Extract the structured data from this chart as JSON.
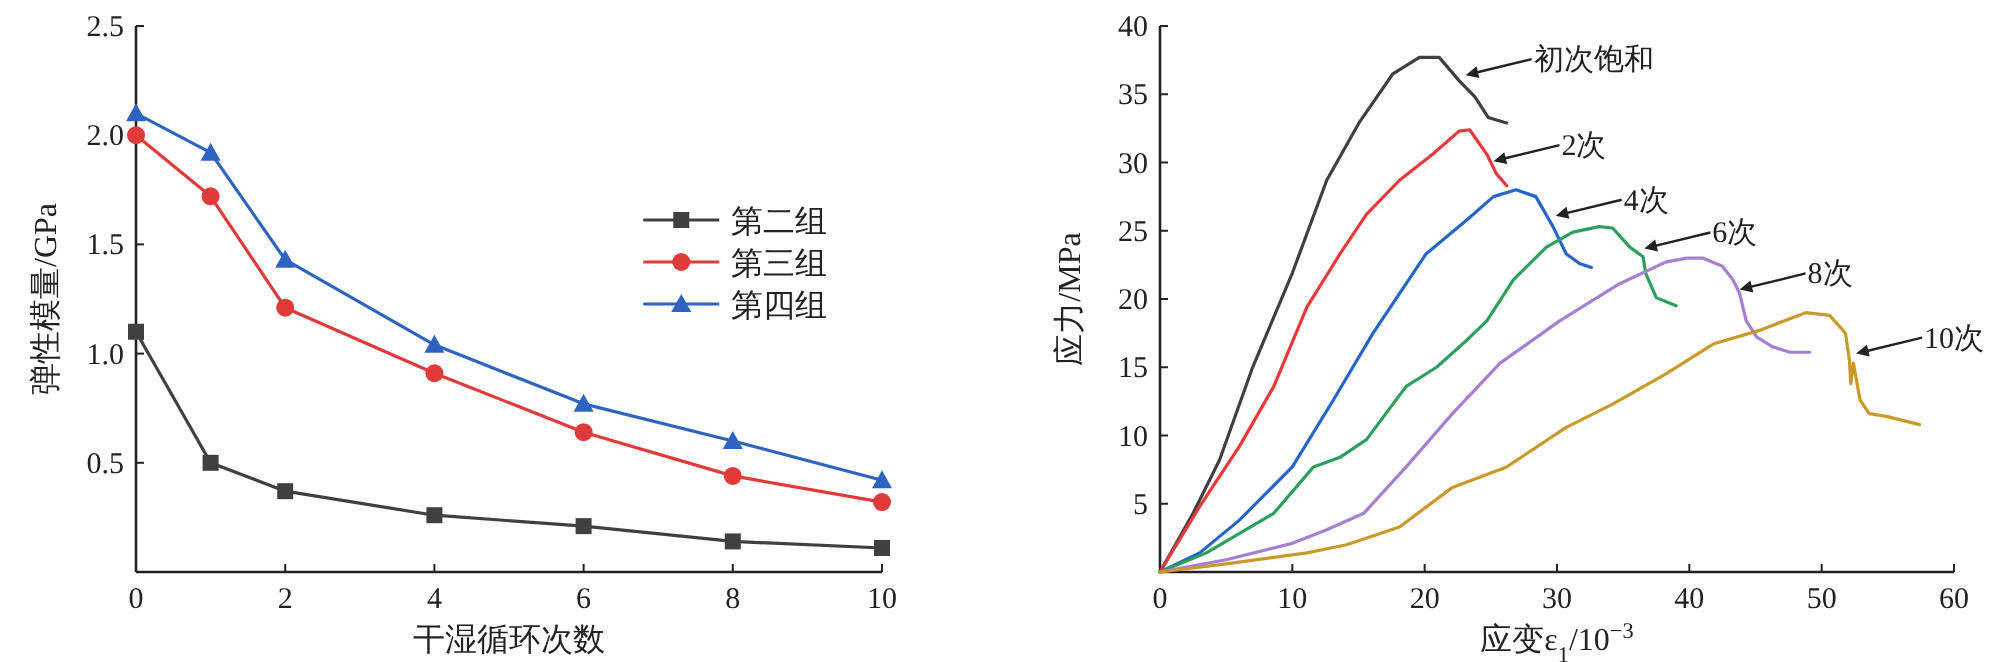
{
  "chart_data": [
    {
      "type": "line",
      "xlabel": "干湿循环次数",
      "ylabel": "弹性模量/GPa",
      "x": [
        0,
        1,
        2,
        4,
        6,
        8,
        10
      ],
      "xlim": [
        0,
        10
      ],
      "xticks": [
        0,
        2,
        4,
        6,
        8,
        10
      ],
      "ylim": [
        0,
        2.5
      ],
      "yticks": [
        0.5,
        {
          "value": 1,
          "label": "1.0"
        },
        1.5,
        {
          "value": 2,
          "label": "2.0"
        },
        2.5
      ],
      "legend": "right",
      "series": [
        {
          "name": "第二组",
          "color": "#404040",
          "marker": "square",
          "values": [
            1.1,
            0.5,
            0.37,
            0.26,
            0.21,
            0.14,
            0.11
          ]
        },
        {
          "name": "第三组",
          "color": "#e03a3a",
          "marker": "circle",
          "values": [
            2.0,
            1.72,
            1.21,
            0.91,
            0.64,
            0.44,
            0.32
          ]
        },
        {
          "name": "第四组",
          "color": "#2e64c0",
          "marker": "triangle",
          "values": [
            2.1,
            1.92,
            1.43,
            1.04,
            0.77,
            0.6,
            0.42
          ]
        }
      ]
    },
    {
      "type": "line",
      "xlabel": "应变ε$_{1}$/10$^{−3}$",
      "ylabel": "应力/MPa",
      "xlim": [
        0,
        60
      ],
      "xticks": [
        0,
        10,
        20,
        30,
        40,
        50,
        60
      ],
      "ylim": [
        0,
        40
      ],
      "yticks": [
        5,
        10,
        15,
        20,
        25,
        30,
        35,
        40
      ],
      "marker": "none",
      "series": [
        {
          "color": "#404040",
          "x": [
            0,
            2.5,
            4.5,
            7,
            10,
            12.6,
            15.1,
            17.6,
            19.6,
            21.1,
            22.6,
            23.8,
            24.8,
            26.2
          ],
          "values": [
            0,
            4.3,
            8.2,
            15,
            21.9,
            28.7,
            33,
            36.5,
            37.7,
            37.7,
            36,
            34.8,
            33.3,
            32.9
          ]
        },
        {
          "color": "#e8383a",
          "x": [
            0,
            3,
            6,
            8.6,
            11.1,
            13.6,
            15.6,
            18.1,
            20.6,
            22.6,
            23.4,
            24.7,
            25.4,
            26.2
          ],
          "values": [
            0,
            4.8,
            9.2,
            13.6,
            19.4,
            23.3,
            26.2,
            28.7,
            30.6,
            32.3,
            32.4,
            30.6,
            29.2,
            28.3
          ]
        },
        {
          "color": "#2565c8",
          "x": [
            0,
            3,
            6,
            10,
            13.1,
            16.1,
            20.1,
            23.2,
            25.2,
            26.9,
            28.4,
            29.7,
            30.7,
            31.7,
            32.6
          ],
          "values": [
            0,
            1.4,
            3.8,
            7.7,
            12.6,
            17.5,
            23.3,
            25.8,
            27.5,
            28,
            27.5,
            25.3,
            23.3,
            22.6,
            22.3
          ]
        },
        {
          "color": "#2e9e5e",
          "x": [
            0,
            3.5,
            8.6,
            11.6,
            13.6,
            15.6,
            18.6,
            20.9,
            23.2,
            24.7,
            26.7,
            29.2,
            31.2,
            33.2,
            34.2,
            35.5,
            36.5,
            36.7,
            37.5,
            39
          ],
          "values": [
            0,
            1.4,
            4.3,
            7.7,
            8.4,
            9.7,
            13.6,
            15,
            17,
            18.4,
            21.4,
            23.8,
            24.9,
            25.3,
            25.2,
            23.8,
            23.1,
            21.9,
            20.1,
            19.5
          ]
        },
        {
          "color": "#a77fd0",
          "x": [
            0,
            5,
            10,
            12.6,
            15.4,
            18.6,
            22.1,
            25.7,
            30.2,
            34.7,
            38.2,
            39.8,
            41,
            42.5,
            43.3,
            43.8,
            44.3,
            45.1,
            46.3,
            47.6,
            49.1
          ],
          "values": [
            0,
            0.9,
            2.1,
            3.1,
            4.3,
            7.7,
            11.6,
            15.3,
            18.4,
            21.1,
            22.7,
            23,
            23,
            22.4,
            21.4,
            20.4,
            18.4,
            17.2,
            16.5,
            16.1,
            16.1
          ]
        },
        {
          "color": "#c99a2a",
          "x": [
            0,
            5,
            11.1,
            14.1,
            18.1,
            22.1,
            26.2,
            30.7,
            34.2,
            38.2,
            41.8,
            45.3,
            48.8,
            50.6,
            51.8,
            52.1,
            52.2,
            52.4,
            52.9,
            53.6,
            54.9,
            57.4
          ],
          "values": [
            0,
            0.6,
            1.4,
            2,
            3.3,
            6.2,
            7.7,
            10.6,
            12.3,
            14.5,
            16.7,
            17.7,
            19,
            18.8,
            17.5,
            15.5,
            13.8,
            15.3,
            12.6,
            11.6,
            11.4,
            10.8
          ]
        }
      ],
      "annotations": [
        {
          "text": "初次饱和",
          "x": 23.1,
          "y": 36.4
        },
        {
          "text": "2次",
          "x": 25.2,
          "y": 30.1
        },
        {
          "text": "4次",
          "x": 29.9,
          "y": 26.1
        },
        {
          "text": "6次",
          "x": 36.6,
          "y": 23.7
        },
        {
          "text": "8次",
          "x": 43.8,
          "y": 20.7
        },
        {
          "text": "10次",
          "x": 52.6,
          "y": 16
        }
      ]
    }
  ]
}
